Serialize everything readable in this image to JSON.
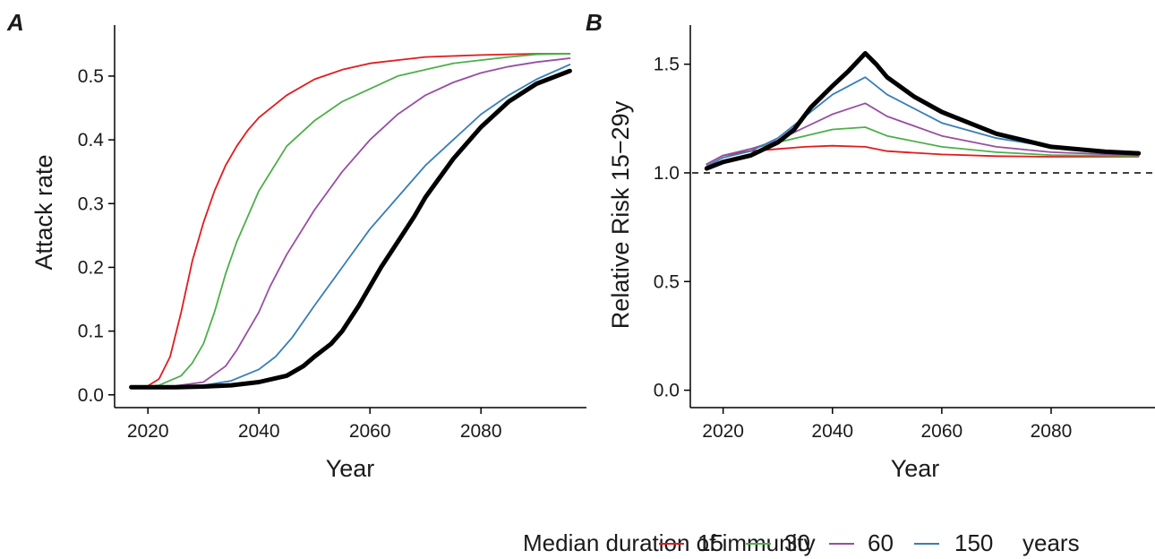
{
  "figure": {
    "legend": {
      "title": "Median duration of immunity",
      "suffix": "years",
      "items": [
        {
          "label": "15",
          "color": "#e41a1c"
        },
        {
          "label": "30",
          "color": "#4daf4a"
        },
        {
          "label": "60",
          "color": "#984ea3"
        },
        {
          "label": "150",
          "color": "#377eb8"
        }
      ]
    }
  },
  "chart_data": [
    {
      "type": "line",
      "panel_label": "A",
      "title": "",
      "xlabel": "Year",
      "ylabel": "Attack rate",
      "xlim": [
        2014,
        2099
      ],
      "ylim": [
        -0.02,
        0.58
      ],
      "xticks": [
        2020,
        2040,
        2060,
        2080
      ],
      "yticks": [
        0.0,
        0.1,
        0.2,
        0.3,
        0.4,
        0.5
      ],
      "ytick_labels": [
        "0.0",
        "0.1",
        "0.2",
        "0.3",
        "0.4",
        "0.5"
      ],
      "grid": false,
      "legend_position": "bottom",
      "series": [
        {
          "name": "15",
          "color": "#e41a1c",
          "width": 1.8,
          "points": [
            [
              2017,
              0.012
            ],
            [
              2020,
              0.014
            ],
            [
              2022,
              0.025
            ],
            [
              2024,
              0.06
            ],
            [
              2026,
              0.13
            ],
            [
              2028,
              0.21
            ],
            [
              2030,
              0.27
            ],
            [
              2032,
              0.32
            ],
            [
              2034,
              0.36
            ],
            [
              2036,
              0.39
            ],
            [
              2038,
              0.415
            ],
            [
              2040,
              0.435
            ],
            [
              2045,
              0.47
            ],
            [
              2050,
              0.495
            ],
            [
              2055,
              0.51
            ],
            [
              2060,
              0.52
            ],
            [
              2065,
              0.525
            ],
            [
              2070,
              0.53
            ],
            [
              2080,
              0.533
            ],
            [
              2090,
              0.535
            ],
            [
              2096,
              0.535
            ]
          ]
        },
        {
          "name": "30",
          "color": "#4daf4a",
          "width": 1.8,
          "points": [
            [
              2017,
              0.012
            ],
            [
              2022,
              0.015
            ],
            [
              2026,
              0.03
            ],
            [
              2028,
              0.05
            ],
            [
              2030,
              0.08
            ],
            [
              2032,
              0.13
            ],
            [
              2034,
              0.19
            ],
            [
              2036,
              0.24
            ],
            [
              2038,
              0.28
            ],
            [
              2040,
              0.32
            ],
            [
              2045,
              0.39
            ],
            [
              2050,
              0.43
            ],
            [
              2055,
              0.46
            ],
            [
              2060,
              0.48
            ],
            [
              2065,
              0.5
            ],
            [
              2070,
              0.51
            ],
            [
              2075,
              0.52
            ],
            [
              2080,
              0.525
            ],
            [
              2085,
              0.53
            ],
            [
              2090,
              0.534
            ],
            [
              2096,
              0.535
            ]
          ]
        },
        {
          "name": "60",
          "color": "#984ea3",
          "width": 1.8,
          "points": [
            [
              2017,
              0.012
            ],
            [
              2025,
              0.014
            ],
            [
              2030,
              0.02
            ],
            [
              2034,
              0.045
            ],
            [
              2036,
              0.07
            ],
            [
              2038,
              0.1
            ],
            [
              2040,
              0.13
            ],
            [
              2042,
              0.17
            ],
            [
              2045,
              0.22
            ],
            [
              2050,
              0.29
            ],
            [
              2055,
              0.35
            ],
            [
              2060,
              0.4
            ],
            [
              2065,
              0.44
            ],
            [
              2070,
              0.47
            ],
            [
              2075,
              0.49
            ],
            [
              2080,
              0.505
            ],
            [
              2085,
              0.515
            ],
            [
              2090,
              0.522
            ],
            [
              2096,
              0.528
            ]
          ]
        },
        {
          "name": "150",
          "color": "#377eb8",
          "width": 1.8,
          "points": [
            [
              2017,
              0.012
            ],
            [
              2030,
              0.015
            ],
            [
              2035,
              0.022
            ],
            [
              2040,
              0.04
            ],
            [
              2043,
              0.06
            ],
            [
              2046,
              0.09
            ],
            [
              2050,
              0.14
            ],
            [
              2055,
              0.2
            ],
            [
              2060,
              0.26
            ],
            [
              2065,
              0.31
            ],
            [
              2070,
              0.36
            ],
            [
              2075,
              0.4
            ],
            [
              2080,
              0.44
            ],
            [
              2085,
              0.47
            ],
            [
              2090,
              0.495
            ],
            [
              2096,
              0.518
            ]
          ]
        },
        {
          "name": "",
          "color": "#000000",
          "width": 5,
          "points": [
            [
              2017,
              0.012
            ],
            [
              2025,
              0.012
            ],
            [
              2030,
              0.013
            ],
            [
              2035,
              0.015
            ],
            [
              2040,
              0.02
            ],
            [
              2045,
              0.03
            ],
            [
              2048,
              0.045
            ],
            [
              2050,
              0.06
            ],
            [
              2053,
              0.08
            ],
            [
              2055,
              0.1
            ],
            [
              2058,
              0.14
            ],
            [
              2060,
              0.17
            ],
            [
              2062,
              0.2
            ],
            [
              2065,
              0.24
            ],
            [
              2068,
              0.28
            ],
            [
              2070,
              0.31
            ],
            [
              2075,
              0.37
            ],
            [
              2080,
              0.42
            ],
            [
              2085,
              0.46
            ],
            [
              2090,
              0.488
            ],
            [
              2096,
              0.508
            ]
          ]
        }
      ]
    },
    {
      "type": "line",
      "panel_label": "B",
      "title": "",
      "xlabel": "Year",
      "ylabel": "Relative Risk 15−29y",
      "xlim": [
        2014,
        2099
      ],
      "ylim": [
        -0.08,
        1.68
      ],
      "xticks": [
        2020,
        2040,
        2060,
        2080
      ],
      "yticks": [
        0.0,
        0.5,
        1.0,
        1.5
      ],
      "ytick_labels": [
        "0.0",
        "0.5",
        "1.0",
        "1.5"
      ],
      "grid": false,
      "reference_line": {
        "y": 1.0,
        "style": "dashed"
      },
      "legend_position": "bottom",
      "series": [
        {
          "name": "15",
          "color": "#e41a1c",
          "width": 1.8,
          "points": [
            [
              2017,
              1.04
            ],
            [
              2020,
              1.08
            ],
            [
              2025,
              1.1
            ],
            [
              2030,
              1.11
            ],
            [
              2035,
              1.12
            ],
            [
              2040,
              1.125
            ],
            [
              2046,
              1.12
            ],
            [
              2050,
              1.1
            ],
            [
              2060,
              1.085
            ],
            [
              2070,
              1.077
            ],
            [
              2080,
              1.074
            ],
            [
              2096,
              1.075
            ]
          ]
        },
        {
          "name": "30",
          "color": "#4daf4a",
          "width": 1.8,
          "points": [
            [
              2017,
              1.04
            ],
            [
              2020,
              1.08
            ],
            [
              2025,
              1.11
            ],
            [
              2030,
              1.14
            ],
            [
              2035,
              1.17
            ],
            [
              2040,
              1.2
            ],
            [
              2046,
              1.21
            ],
            [
              2050,
              1.17
            ],
            [
              2060,
              1.12
            ],
            [
              2070,
              1.095
            ],
            [
              2080,
              1.082
            ],
            [
              2096,
              1.078
            ]
          ]
        },
        {
          "name": "60",
          "color": "#984ea3",
          "width": 1.8,
          "points": [
            [
              2017,
              1.04
            ],
            [
              2020,
              1.08
            ],
            [
              2025,
              1.11
            ],
            [
              2030,
              1.15
            ],
            [
              2035,
              1.21
            ],
            [
              2040,
              1.27
            ],
            [
              2046,
              1.32
            ],
            [
              2050,
              1.26
            ],
            [
              2060,
              1.17
            ],
            [
              2070,
              1.12
            ],
            [
              2080,
              1.095
            ],
            [
              2096,
              1.08
            ]
          ]
        },
        {
          "name": "150",
          "color": "#377eb8",
          "width": 1.8,
          "points": [
            [
              2017,
              1.03
            ],
            [
              2020,
              1.07
            ],
            [
              2025,
              1.1
            ],
            [
              2030,
              1.16
            ],
            [
              2035,
              1.26
            ],
            [
              2040,
              1.36
            ],
            [
              2046,
              1.44
            ],
            [
              2050,
              1.36
            ],
            [
              2060,
              1.23
            ],
            [
              2070,
              1.16
            ],
            [
              2080,
              1.12
            ],
            [
              2096,
              1.085
            ]
          ]
        },
        {
          "name": "",
          "color": "#000000",
          "width": 5,
          "points": [
            [
              2017,
              1.02
            ],
            [
              2020,
              1.05
            ],
            [
              2025,
              1.08
            ],
            [
              2030,
              1.14
            ],
            [
              2033,
              1.2
            ],
            [
              2036,
              1.3
            ],
            [
              2040,
              1.4
            ],
            [
              2043,
              1.47
            ],
            [
              2046,
              1.55
            ],
            [
              2048,
              1.5
            ],
            [
              2050,
              1.44
            ],
            [
              2055,
              1.35
            ],
            [
              2060,
              1.28
            ],
            [
              2070,
              1.18
            ],
            [
              2080,
              1.12
            ],
            [
              2090,
              1.097
            ],
            [
              2096,
              1.09
            ]
          ]
        }
      ]
    }
  ]
}
